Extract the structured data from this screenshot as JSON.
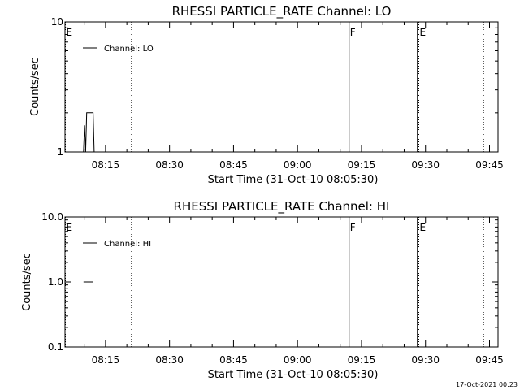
{
  "footer": {
    "timestamp": "17-Oct-2021 00:23"
  },
  "chart_data": [
    {
      "type": "line",
      "title": "RHESSI PARTICLE_RATE Channel: LO",
      "xlabel": "Start Time (31-Oct-10 08:05:30)",
      "ylabel": "Counts/sec",
      "yscale": "log",
      "ylim": [
        1,
        10
      ],
      "xlim": [
        "08:05:30",
        "09:47:00"
      ],
      "x_ticks": [
        "08:15",
        "08:30",
        "08:45",
        "09:00",
        "09:15",
        "09:30",
        "09:45"
      ],
      "y_ticks": [
        "1",
        "10"
      ],
      "legend": {
        "position": "top-left",
        "entries": [
          "Channel: LO"
        ]
      },
      "series": [
        {
          "name": "Channel: LO",
          "points": [
            [
              "08:09:50",
              1.0
            ],
            [
              "08:10:05",
              1.6
            ],
            [
              "08:10:20",
              1.0
            ],
            [
              "08:10:35",
              2.0
            ],
            [
              "08:12:05",
              2.0
            ],
            [
              "08:12:20",
              1.0
            ]
          ]
        }
      ],
      "markers": [
        {
          "time": "08:05:30",
          "label": "E",
          "style": "dotted"
        },
        {
          "time": "08:21:00",
          "label": "",
          "style": "dotted"
        },
        {
          "time": "09:12:00",
          "label": "F",
          "style": "solid"
        },
        {
          "time": "09:28:00",
          "label": "",
          "style": "solid"
        },
        {
          "time": "09:28:20",
          "label": "E",
          "style": "dotted"
        },
        {
          "time": "09:43:30",
          "label": "",
          "style": "dotted"
        }
      ]
    },
    {
      "type": "line",
      "title": "RHESSI PARTICLE_RATE Channel: HI",
      "xlabel": "Start Time (31-Oct-10 08:05:30)",
      "ylabel": "Counts/sec",
      "yscale": "log",
      "ylim": [
        0.1,
        10
      ],
      "xlim": [
        "08:05:30",
        "09:47:00"
      ],
      "x_ticks": [
        "08:15",
        "08:30",
        "08:45",
        "09:00",
        "09:15",
        "09:30",
        "09:45"
      ],
      "y_ticks": [
        "0.1",
        "1.0",
        "10.0"
      ],
      "legend": {
        "position": "top-left",
        "entries": [
          "Channel: HI"
        ]
      },
      "series": [
        {
          "name": "Channel: HI",
          "points": [
            [
              "08:09:50",
              1.0
            ],
            [
              "08:12:05",
              1.0
            ]
          ]
        }
      ],
      "markers": [
        {
          "time": "08:05:30",
          "label": "E",
          "style": "dotted"
        },
        {
          "time": "08:21:00",
          "label": "",
          "style": "dotted"
        },
        {
          "time": "09:12:00",
          "label": "F",
          "style": "solid"
        },
        {
          "time": "09:28:00",
          "label": "",
          "style": "solid"
        },
        {
          "time": "09:28:20",
          "label": "E",
          "style": "dotted"
        },
        {
          "time": "09:43:30",
          "label": "",
          "style": "dotted"
        }
      ]
    }
  ]
}
